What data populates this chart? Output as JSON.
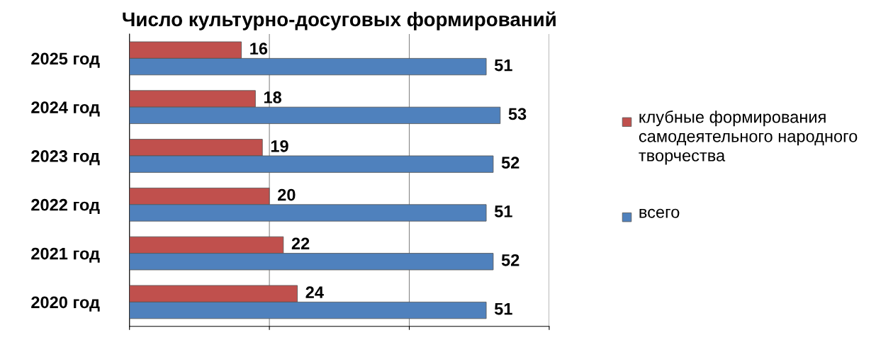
{
  "chart_data": {
    "type": "bar",
    "orientation": "horizontal",
    "title": "Число культурно-досуговых формирований",
    "categories": [
      "2025 год",
      "2024 год",
      "2023 год",
      "2022 год",
      "2021 год",
      "2020 год"
    ],
    "series": [
      {
        "name": "клубные формирования самодеятельного народного творчества",
        "color": "#c0504d",
        "values": [
          16,
          18,
          19,
          20,
          22,
          24
        ]
      },
      {
        "name": "всего",
        "color": "#4f81bd",
        "values": [
          51,
          53,
          52,
          51,
          52,
          51
        ]
      }
    ],
    "xlim": [
      0,
      60
    ],
    "xticks": [
      0,
      20,
      40,
      60
    ],
    "tick_labels": "y",
    "grid": "x",
    "legend": "right",
    "data_labels": true
  }
}
